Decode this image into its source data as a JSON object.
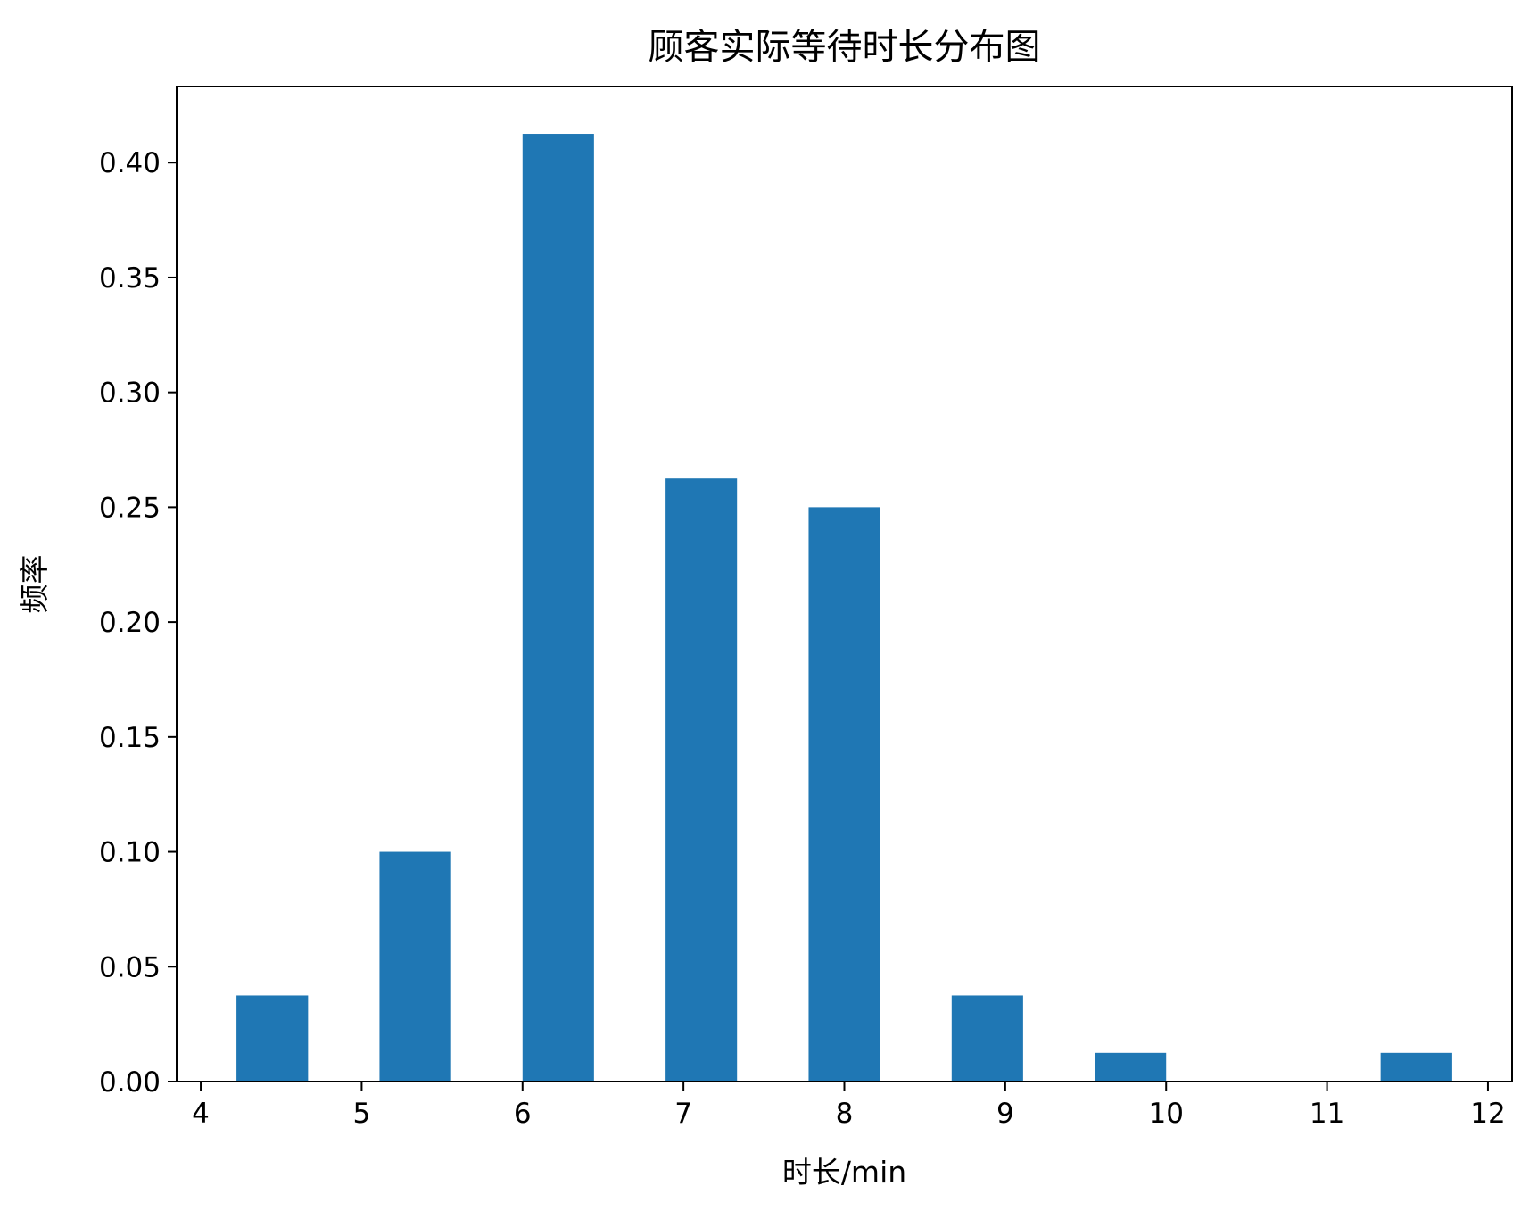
{
  "chart_data": {
    "type": "bar",
    "title": "顾客实际等待时长分布图",
    "xlabel": "时长/min",
    "ylabel": "频率",
    "xlim": [
      3.85,
      12.15
    ],
    "ylim": [
      0,
      0.4331
    ],
    "xticks": [
      4,
      5,
      6,
      7,
      8,
      9,
      10,
      11,
      12
    ],
    "yticks": [
      0.0,
      0.05,
      0.1,
      0.15,
      0.2,
      0.25,
      0.3,
      0.35,
      0.4
    ],
    "ytick_labels": [
      "0.00",
      "0.05",
      "0.10",
      "0.15",
      "0.20",
      "0.25",
      "0.30",
      "0.35",
      "0.40"
    ],
    "bar_color": "#1f77b4",
    "grid": false,
    "bars": [
      {
        "x_start": 4.222,
        "x_end": 4.667,
        "value": 0.0375
      },
      {
        "x_start": 5.111,
        "x_end": 5.556,
        "value": 0.1
      },
      {
        "x_start": 6.0,
        "x_end": 6.444,
        "value": 0.4125
      },
      {
        "x_start": 6.889,
        "x_end": 7.333,
        "value": 0.2625
      },
      {
        "x_start": 7.778,
        "x_end": 8.222,
        "value": 0.25
      },
      {
        "x_start": 8.667,
        "x_end": 9.111,
        "value": 0.0375
      },
      {
        "x_start": 9.556,
        "x_end": 10.0,
        "value": 0.0125
      },
      {
        "x_start": 10.444,
        "x_end": 10.889,
        "value": 0.0
      },
      {
        "x_start": 11.333,
        "x_end": 11.778,
        "value": 0.0125
      }
    ]
  }
}
